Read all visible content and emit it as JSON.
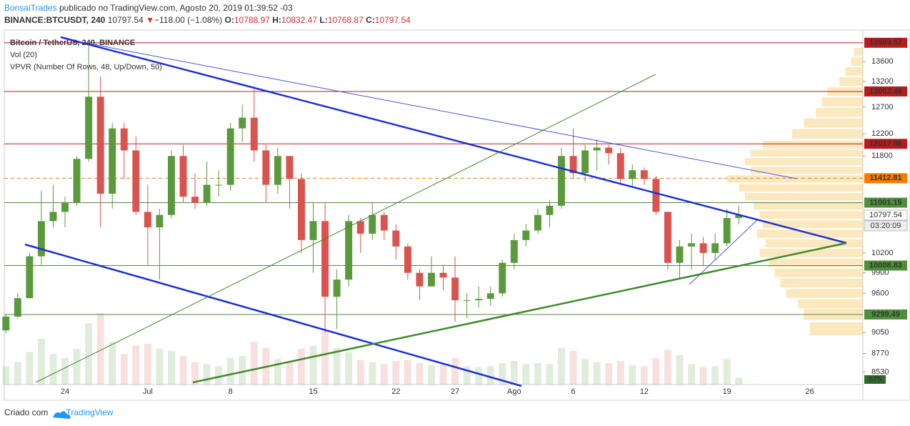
{
  "header": {
    "author": "BonsaiTrades",
    "published": "publicado no TradingView.com, Agosto 20, 2019 01:39:52 -03",
    "symbol": "BINANCE:BTCUSDT, 240",
    "price": "10797.54",
    "arrow": "▼",
    "change": "−118.00 (−1.08%)",
    "o_label": "O:",
    "o": "10788.97",
    "h_label": "H:",
    "h": "10832.47",
    "l_label": "L:",
    "l": "10768.87",
    "c_label": "C:",
    "c": "10797.54"
  },
  "footer": {
    "made_with": "Criado com",
    "brand": "TradingView"
  },
  "chart_data": {
    "type": "candlestick",
    "legend": [
      "Bitcoin / TetherUS, 240, BINANCE",
      "Vol (20)",
      "VPVR (Number Of Rows, 48, Up/Down, 50)"
    ],
    "log_scale": true,
    "up_color": "#5b9a3c",
    "down_color": "#d9534f",
    "vpvr_color": "#f7d58a",
    "categories": [
      null,
      null,
      null,
      null,
      null,
      "24",
      null,
      null,
      null,
      null,
      null,
      null,
      "Jul",
      null,
      null,
      null,
      null,
      null,
      null,
      "8",
      null,
      null,
      null,
      null,
      null,
      null,
      "15",
      null,
      null,
      null,
      null,
      null,
      null,
      "22",
      null,
      null,
      null,
      null,
      "27",
      null,
      null,
      null,
      null,
      "Ago",
      null,
      null,
      null,
      null,
      "6",
      null,
      null,
      null,
      null,
      null,
      "12",
      null,
      null,
      null,
      null,
      null,
      null,
      "19",
      null,
      null,
      null,
      null,
      null,
      null,
      "26",
      null,
      null,
      null,
      null
    ],
    "open": [
      9080,
      9270,
      9530,
      10150,
      10700,
      10850,
      11000,
      11750,
      12900,
      11150,
      12300,
      11900,
      10850,
      10600,
      10800,
      11800,
      11100,
      11000,
      11300,
      11300,
      12300,
      12500,
      11900,
      11300,
      11800,
      11400,
      10400,
      10700,
      9550,
      9800,
      10700,
      10500,
      10800,
      10550,
      10300,
      9900,
      9700,
      9900,
      9830,
      9500,
      9500,
      9520,
      9600,
      10050,
      10400,
      10550,
      10800,
      10950,
      11800,
      11500,
      11900,
      11950,
      11850,
      11400,
      11550,
      11400,
      10850,
      10050,
      10300,
      10350,
      10200,
      10350,
      10750,
      null,
      null,
      null,
      null,
      null,
      null,
      null,
      null,
      null,
      null
    ],
    "high": [
      9300,
      9600,
      10200,
      11200,
      11300,
      11100,
      11800,
      13990,
      13300,
      12400,
      12400,
      12150,
      11300,
      10900,
      11900,
      12000,
      11500,
      11700,
      11550,
      12400,
      12750,
      13100,
      12000,
      11950,
      11800,
      11500,
      11000,
      11000,
      9950,
      10800,
      10750,
      11000,
      10850,
      10650,
      10350,
      9950,
      10150,
      10000,
      10150,
      9600,
      9700,
      9700,
      10100,
      10500,
      10650,
      10900,
      11050,
      11950,
      12300,
      12000,
      12100,
      12000,
      11950,
      11650,
      11600,
      11450,
      10850,
      10400,
      10500,
      10450,
      10500,
      10900,
      10950,
      null,
      null,
      null,
      null,
      null,
      null,
      null,
      null,
      null,
      null
    ],
    "low": [
      9040,
      9250,
      9530,
      10000,
      10600,
      10600,
      10950,
      11700,
      10600,
      10900,
      11400,
      10800,
      10000,
      9800,
      10750,
      11000,
      10900,
      10950,
      11100,
      11200,
      12050,
      11700,
      11000,
      11150,
      10900,
      10200,
      9900,
      9050,
      9100,
      9700,
      10200,
      10400,
      10400,
      10100,
      9800,
      9500,
      9700,
      9650,
      9200,
      9250,
      9400,
      9420,
      9550,
      9950,
      10300,
      10500,
      10600,
      10900,
      11400,
      11350,
      11550,
      11650,
      11300,
      11250,
      11300,
      10800,
      9950,
      9800,
      9950,
      10000,
      10100,
      10300,
      10650,
      null,
      null,
      null,
      null,
      null,
      null,
      null,
      null,
      null,
      null
    ],
    "close": [
      9270,
      9530,
      10150,
      10700,
      10850,
      11000,
      11750,
      12900,
      11150,
      12300,
      11900,
      10850,
      10600,
      10800,
      11800,
      11100,
      11000,
      11300,
      11300,
      12300,
      12500,
      11900,
      11300,
      11800,
      11400,
      10400,
      10700,
      9550,
      9800,
      10700,
      10500,
      10800,
      10550,
      10300,
      9900,
      9700,
      9900,
      9830,
      9500,
      9500,
      9520,
      9600,
      10050,
      10400,
      10550,
      10800,
      10950,
      11800,
      11500,
      11900,
      11950,
      11850,
      11400,
      11550,
      11400,
      10850,
      10050,
      10300,
      10350,
      10200,
      10350,
      10750,
      10797.54,
      null,
      null,
      null,
      null,
      null,
      null,
      null,
      null,
      null,
      null
    ],
    "volume": [
      1800,
      2200,
      3200,
      4500,
      3000,
      2600,
      3500,
      6000,
      7000,
      4200,
      3000,
      3800,
      4000,
      3500,
      3300,
      2800,
      2200,
      2000,
      1800,
      2600,
      2800,
      4200,
      3600,
      2500,
      2200,
      3500,
      3800,
      5200,
      3600,
      3200,
      2400,
      2200,
      2000,
      2300,
      2400,
      2100,
      1900,
      2000,
      2600,
      1800,
      1700,
      1800,
      2100,
      2300,
      2000,
      2100,
      2000,
      3600,
      3300,
      2500,
      2200,
      2100,
      2300,
      1900,
      1800,
      2600,
      3400,
      2900,
      2000,
      1700,
      1800,
      2500,
      675,
      null,
      null,
      null,
      null,
      null,
      null,
      null,
      null,
      null,
      null
    ],
    "vpvr": {
      "prices": [
        9100,
        9300,
        9450,
        9600,
        9750,
        9900,
        10050,
        10200,
        10350,
        10500,
        10650,
        10800,
        10950,
        11100,
        11250,
        11400,
        11550,
        11700,
        11850,
        12000,
        12200,
        12400,
        12600,
        12800,
        13000,
        13200,
        13400,
        13600,
        13800
      ],
      "values": [
        90,
        100,
        110,
        130,
        140,
        150,
        160,
        175,
        165,
        180,
        170,
        175,
        185,
        200,
        210,
        230,
        190,
        200,
        190,
        170,
        120,
        100,
        80,
        70,
        60,
        40,
        30,
        20,
        15
      ]
    },
    "levels": [
      {
        "value": 13989.57,
        "color": "#b71c1c",
        "dash": false
      },
      {
        "value": 13002.46,
        "color": "#b71c1c",
        "dash": false
      },
      {
        "value": 12017.86,
        "color": "#b71c1c",
        "dash": false
      },
      {
        "value": 11412.81,
        "color": "#f57c00",
        "dash": true
      },
      {
        "value": 11001.15,
        "color": "#4e8f3a",
        "dash": false
      },
      {
        "value": 10008.83,
        "color": "#4e8f3a",
        "dash": false
      },
      {
        "value": 9299.49,
        "color": "#4e8f3a",
        "dash": false
      }
    ],
    "last_price": 10797.54,
    "countdown": "03:20:09",
    "last_volume": 675,
    "ylim": [
      8370,
      14260
    ],
    "yticks": [
      13600,
      13200,
      12700,
      12200,
      11800,
      10200,
      9900,
      9600,
      9050,
      8770,
      8530
    ]
  }
}
